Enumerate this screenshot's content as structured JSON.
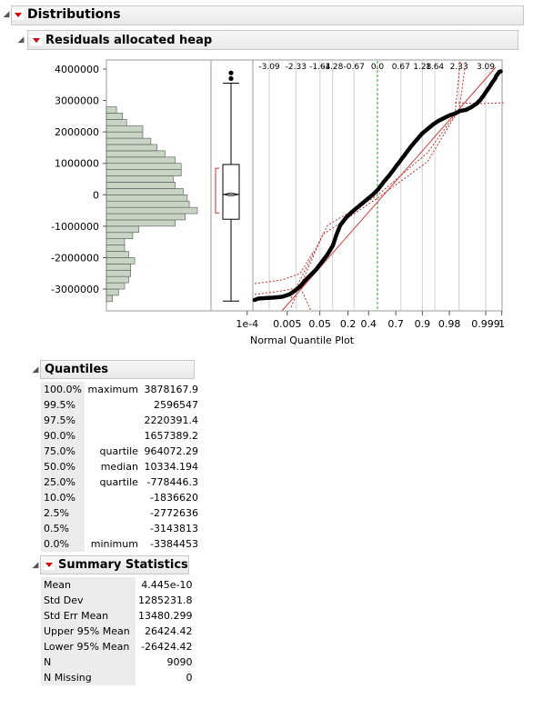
{
  "distributions": {
    "title": "Distributions"
  },
  "report": {
    "title": "Residuals allocated heap",
    "y_ticks": [
      "4000000",
      "3000000",
      "2000000",
      "1000000",
      "0",
      "-1000000",
      "-2000000",
      "-3000000"
    ],
    "quantile_top_ticks": [
      "-3.09",
      "-2.33",
      "-1.64",
      "-1.28",
      "-0.67",
      "0.0",
      "0.67",
      "1.28",
      "1.64",
      "2.33",
      "3.09"
    ],
    "prob_ticks": [
      "1e-4",
      "0.005",
      "0.05",
      "0.2",
      "0.4",
      "0.7",
      "0.9",
      "0.98",
      "0.999",
      "1"
    ],
    "nq_label": "Normal Quantile Plot"
  },
  "chart_data": {
    "type": "histogram",
    "y_range": [
      -3600000,
      4200000
    ],
    "bin_width": 200000,
    "bins": [
      {
        "low": -3400000,
        "count": 3
      },
      {
        "low": -3200000,
        "count": 6
      },
      {
        "low": -3000000,
        "count": 9
      },
      {
        "low": -2800000,
        "count": 11
      },
      {
        "low": -2600000,
        "count": 12
      },
      {
        "low": -2400000,
        "count": 12
      },
      {
        "low": -2200000,
        "count": 14
      },
      {
        "low": -2000000,
        "count": 11
      },
      {
        "low": -1800000,
        "count": 9
      },
      {
        "low": -1600000,
        "count": 9
      },
      {
        "low": -1400000,
        "count": 13
      },
      {
        "low": -1200000,
        "count": 16
      },
      {
        "low": -1000000,
        "count": 34
      },
      {
        "low": -800000,
        "count": 39
      },
      {
        "low": -600000,
        "count": 45
      },
      {
        "low": -400000,
        "count": 41
      },
      {
        "low": -200000,
        "count": 40
      },
      {
        "low": 0,
        "count": 38
      },
      {
        "low": 200000,
        "count": 34
      },
      {
        "low": 400000,
        "count": 33
      },
      {
        "low": 600000,
        "count": 37
      },
      {
        "low": 800000,
        "count": 37
      },
      {
        "low": 1000000,
        "count": 34
      },
      {
        "low": 1200000,
        "count": 29
      },
      {
        "low": 1400000,
        "count": 25
      },
      {
        "low": 1600000,
        "count": 22
      },
      {
        "low": 1800000,
        "count": 18
      },
      {
        "low": 2000000,
        "count": 18
      },
      {
        "low": 2200000,
        "count": 10
      },
      {
        "low": 2400000,
        "count": 8
      },
      {
        "low": 2600000,
        "count": 5
      }
    ],
    "box": {
      "min": -3384453,
      "q1": -778446.3,
      "median": 10334.194,
      "q3": 964072.29,
      "whisker_high": 3550000,
      "outliers": [
        3878167.9,
        3700000
      ]
    }
  },
  "quantiles": {
    "title": "Quantiles",
    "rows": [
      {
        "pct": "100.0%",
        "label": "maximum",
        "value": "3878167.9"
      },
      {
        "pct": "99.5%",
        "label": "",
        "value": "2596547"
      },
      {
        "pct": "97.5%",
        "label": "",
        "value": "2220391.4"
      },
      {
        "pct": "90.0%",
        "label": "",
        "value": "1657389.2"
      },
      {
        "pct": "75.0%",
        "label": "quartile",
        "value": "964072.29"
      },
      {
        "pct": "50.0%",
        "label": "median",
        "value": "10334.194"
      },
      {
        "pct": "25.0%",
        "label": "quartile",
        "value": "-778446.3"
      },
      {
        "pct": "10.0%",
        "label": "",
        "value": "-1836620"
      },
      {
        "pct": "2.5%",
        "label": "",
        "value": "-2772636"
      },
      {
        "pct": "0.5%",
        "label": "",
        "value": "-3143813"
      },
      {
        "pct": "0.0%",
        "label": "minimum",
        "value": "-3384453"
      }
    ]
  },
  "summary": {
    "title": "Summary Statistics",
    "rows": [
      {
        "label": "Mean",
        "value": "4.445e-10"
      },
      {
        "label": "Std Dev",
        "value": "1285231.8"
      },
      {
        "label": "Std Err Mean",
        "value": "13480.299"
      },
      {
        "label": "Upper 95% Mean",
        "value": "26424.42"
      },
      {
        "label": "Lower 95% Mean",
        "value": "-26424.42"
      },
      {
        "label": "N",
        "value": "9090"
      },
      {
        "label": "N Missing",
        "value": "0"
      }
    ]
  }
}
